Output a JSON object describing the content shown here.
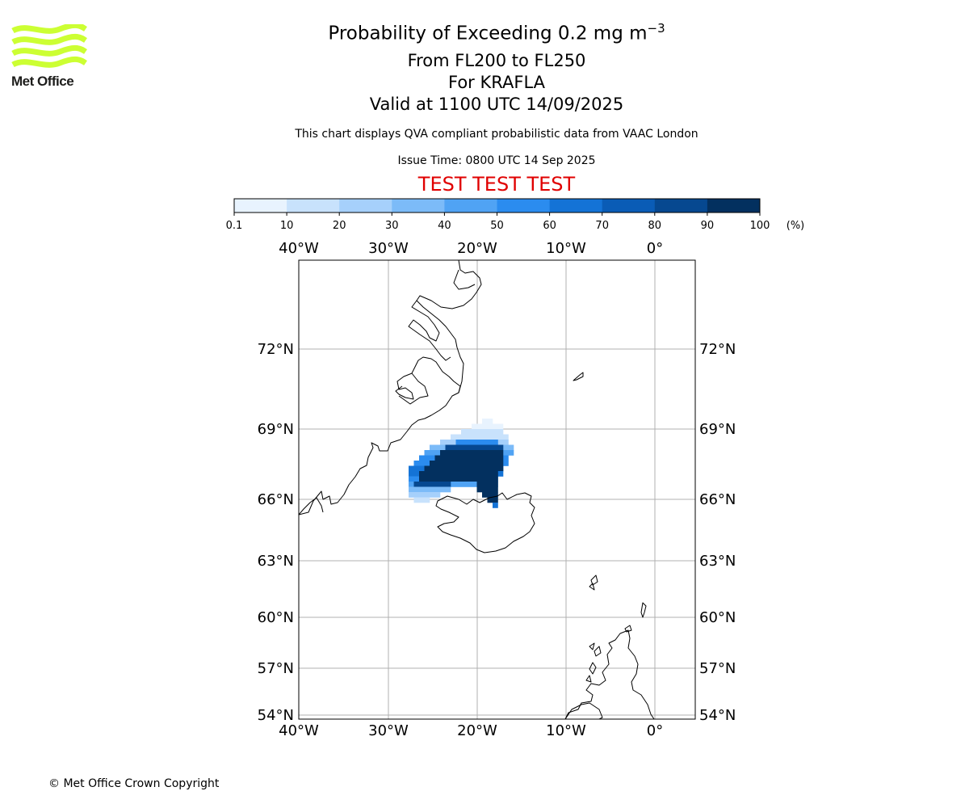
{
  "logo": {
    "name": "Met Office",
    "wave_color": "#ccff33"
  },
  "header": {
    "title_prefix": "Probability of Exceeding 0.2 mg m",
    "title_exponent": "−3",
    "level_range": "From FL200 to FL250",
    "volcano": "For KRAFLA",
    "valid_time": "Valid at 1100 UTC 14/09/2025",
    "description": "This chart displays QVA compliant probabilistic data from VAAC London",
    "issue_time": "Issue Time: 0800 UTC 14 Sep 2025",
    "test_banner": "TEST TEST TEST",
    "test_banner_color": "#e00000"
  },
  "colorbar": {
    "ticks": [
      "0.1",
      "10",
      "20",
      "30",
      "40",
      "50",
      "60",
      "70",
      "80",
      "90",
      "100"
    ],
    "unit": "(%)",
    "colors": [
      "#e8f3fe",
      "#c8e2fc",
      "#a6d0fb",
      "#7cbbf8",
      "#50a3f4",
      "#2b8cef",
      "#1473d6",
      "#0a5cb6",
      "#064890",
      "#03305f"
    ]
  },
  "map": {
    "lon_labels": [
      "40°W",
      "30°W",
      "20°W",
      "10°W",
      "0°"
    ],
    "lat_labels": [
      "72°N",
      "69°N",
      "66°N",
      "63°N",
      "60°N",
      "57°N",
      "54°N"
    ],
    "gridlines": true,
    "plume_peak_probability_pct": 100
  },
  "footer": {
    "copyright": "© Met Office Crown Copyright"
  }
}
